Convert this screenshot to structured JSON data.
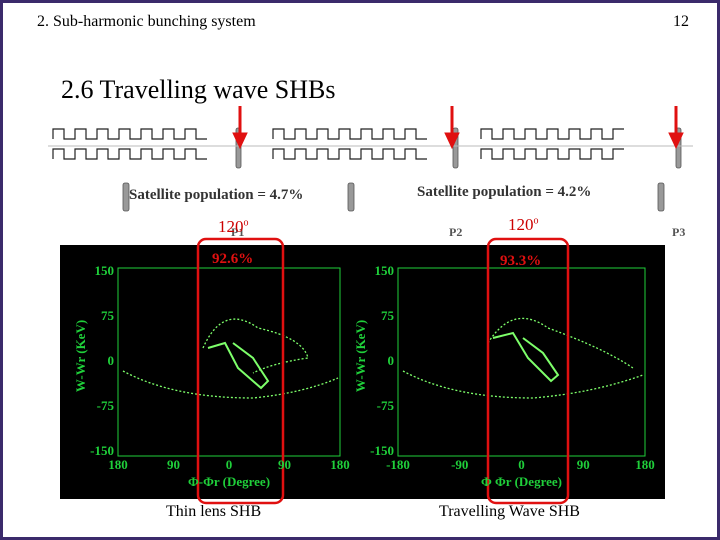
{
  "header": {
    "section": "2. Sub-harmonic bunching system",
    "page_number": "12"
  },
  "title": "2.6 Travelling wave SHBs",
  "positions": [
    "P1",
    "P2",
    "P3"
  ],
  "annotations": {
    "left": {
      "satellite": "Satellite population = 4.7%",
      "angle": "120",
      "angle_sup": "o",
      "capture": "92.6%"
    },
    "right": {
      "satellite": "Satellite population = 4.2%",
      "angle": "120",
      "angle_sup": "o",
      "capture": "93.3%"
    }
  },
  "plots": [
    {
      "y_label": "W-Wr (KeV)",
      "x_label": "Φ-Φr (Degree)",
      "y_ticks": [
        "150",
        "75",
        "0",
        "-75",
        "-150"
      ],
      "x_ticks": [
        "180",
        "90",
        "0",
        "90",
        "180"
      ],
      "caption": "Thin lens SHB"
    },
    {
      "y_label": "W-Wr (KeV)",
      "x_label": "Φ Φr (Degree)",
      "y_ticks": [
        "150",
        "75",
        "0",
        "-75",
        "-150"
      ],
      "x_ticks": [
        "-180",
        "-90",
        "0",
        "90",
        "180"
      ],
      "caption": "Travelling Wave SHB"
    }
  ]
}
